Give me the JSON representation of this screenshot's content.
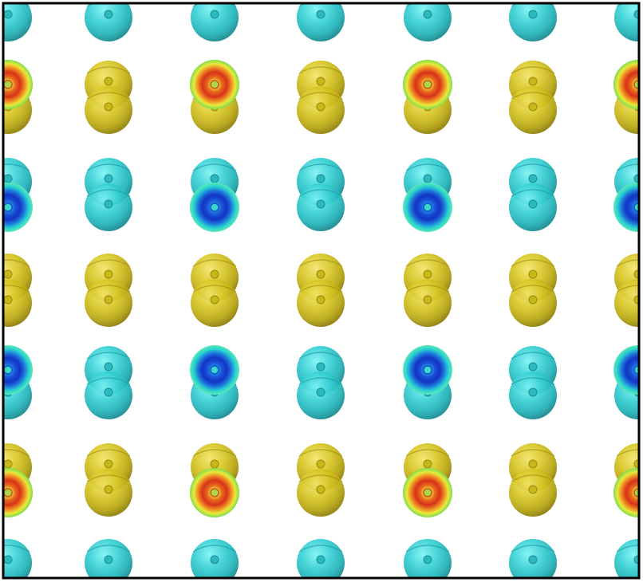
{
  "scene": {
    "description_visible_text": "",
    "lobe_colors": {
      "yellow": "#d4c21a",
      "cyan": "#2ec9cf"
    },
    "slice_colors": {
      "positive": "#e84a1a",
      "negative": "#1f5fe0"
    },
    "grid_pattern": {
      "columns": 7,
      "rows": 7,
      "row_types": [
        "cyan-top",
        "yellow",
        "cyan",
        "yellow",
        "cyan",
        "yellow",
        "cyan-bottom"
      ],
      "slice_rows": [
        1,
        2,
        4,
        5
      ],
      "slice_columns": [
        0,
        2,
        4,
        6
      ]
    }
  }
}
